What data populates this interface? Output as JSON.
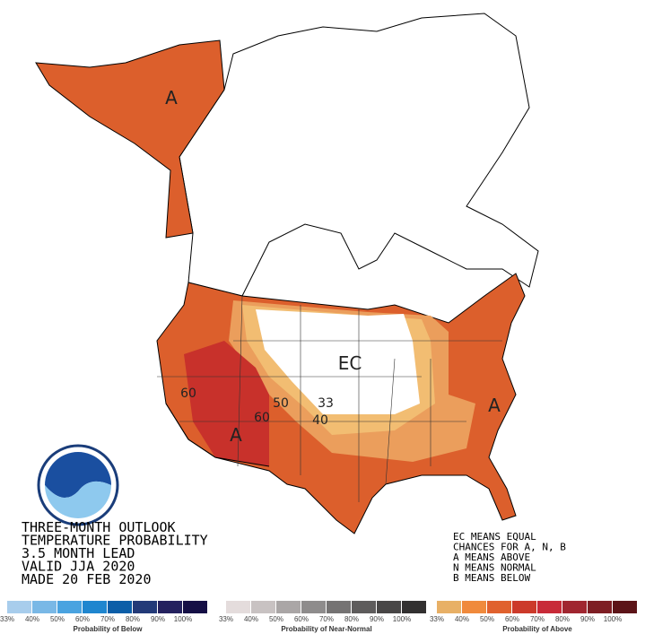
{
  "title_lines": [
    "THREE-MONTH OUTLOOK",
    "TEMPERATURE PROBABILITY",
    "3.5 MONTH LEAD",
    "VALID JJA 2020",
    "MADE 20 FEB 2020"
  ],
  "notes": [
    "EC MEANS EQUAL",
    "CHANCES FOR A, N, B",
    "A MEANS ABOVE",
    "N MEANS NORMAL",
    "B MEANS BELOW"
  ],
  "map_labels": [
    "A",
    "EC",
    "60",
    "50",
    "33",
    "40",
    "60",
    "A",
    "A"
  ],
  "legends": [
    {
      "caption": "Probability of Below",
      "colors": [
        "#a8cdec",
        "#79b8e6",
        "#4aa3e0",
        "#1f86cf",
        "#0c5ea8",
        "#233a78",
        "#24215e",
        "#150f45"
      ],
      "labels": [
        "33%",
        "40%",
        "50%",
        "60%",
        "70%",
        "80%",
        "90%",
        "100%"
      ]
    },
    {
      "caption": "Probability of Near-Normal",
      "colors": [
        "#e4dcdc",
        "#c8c2c2",
        "#aaa6a6",
        "#8e8c8c",
        "#757373",
        "#5e5c5c",
        "#484646",
        "#323030"
      ],
      "labels": [
        "33%",
        "40%",
        "50%",
        "60%",
        "70%",
        "80%",
        "90%",
        "100%"
      ]
    },
    {
      "caption": "Probability of Above",
      "colors": [
        "#e8b066",
        "#f08a3c",
        "#e0612e",
        "#cc3a2a",
        "#c82a38",
        "#a02630",
        "#7e1e24",
        "#5c1418"
      ],
      "labels": [
        "33%",
        "40%",
        "50%",
        "60%",
        "70%",
        "80%",
        "90%",
        "100%"
      ]
    }
  ]
}
